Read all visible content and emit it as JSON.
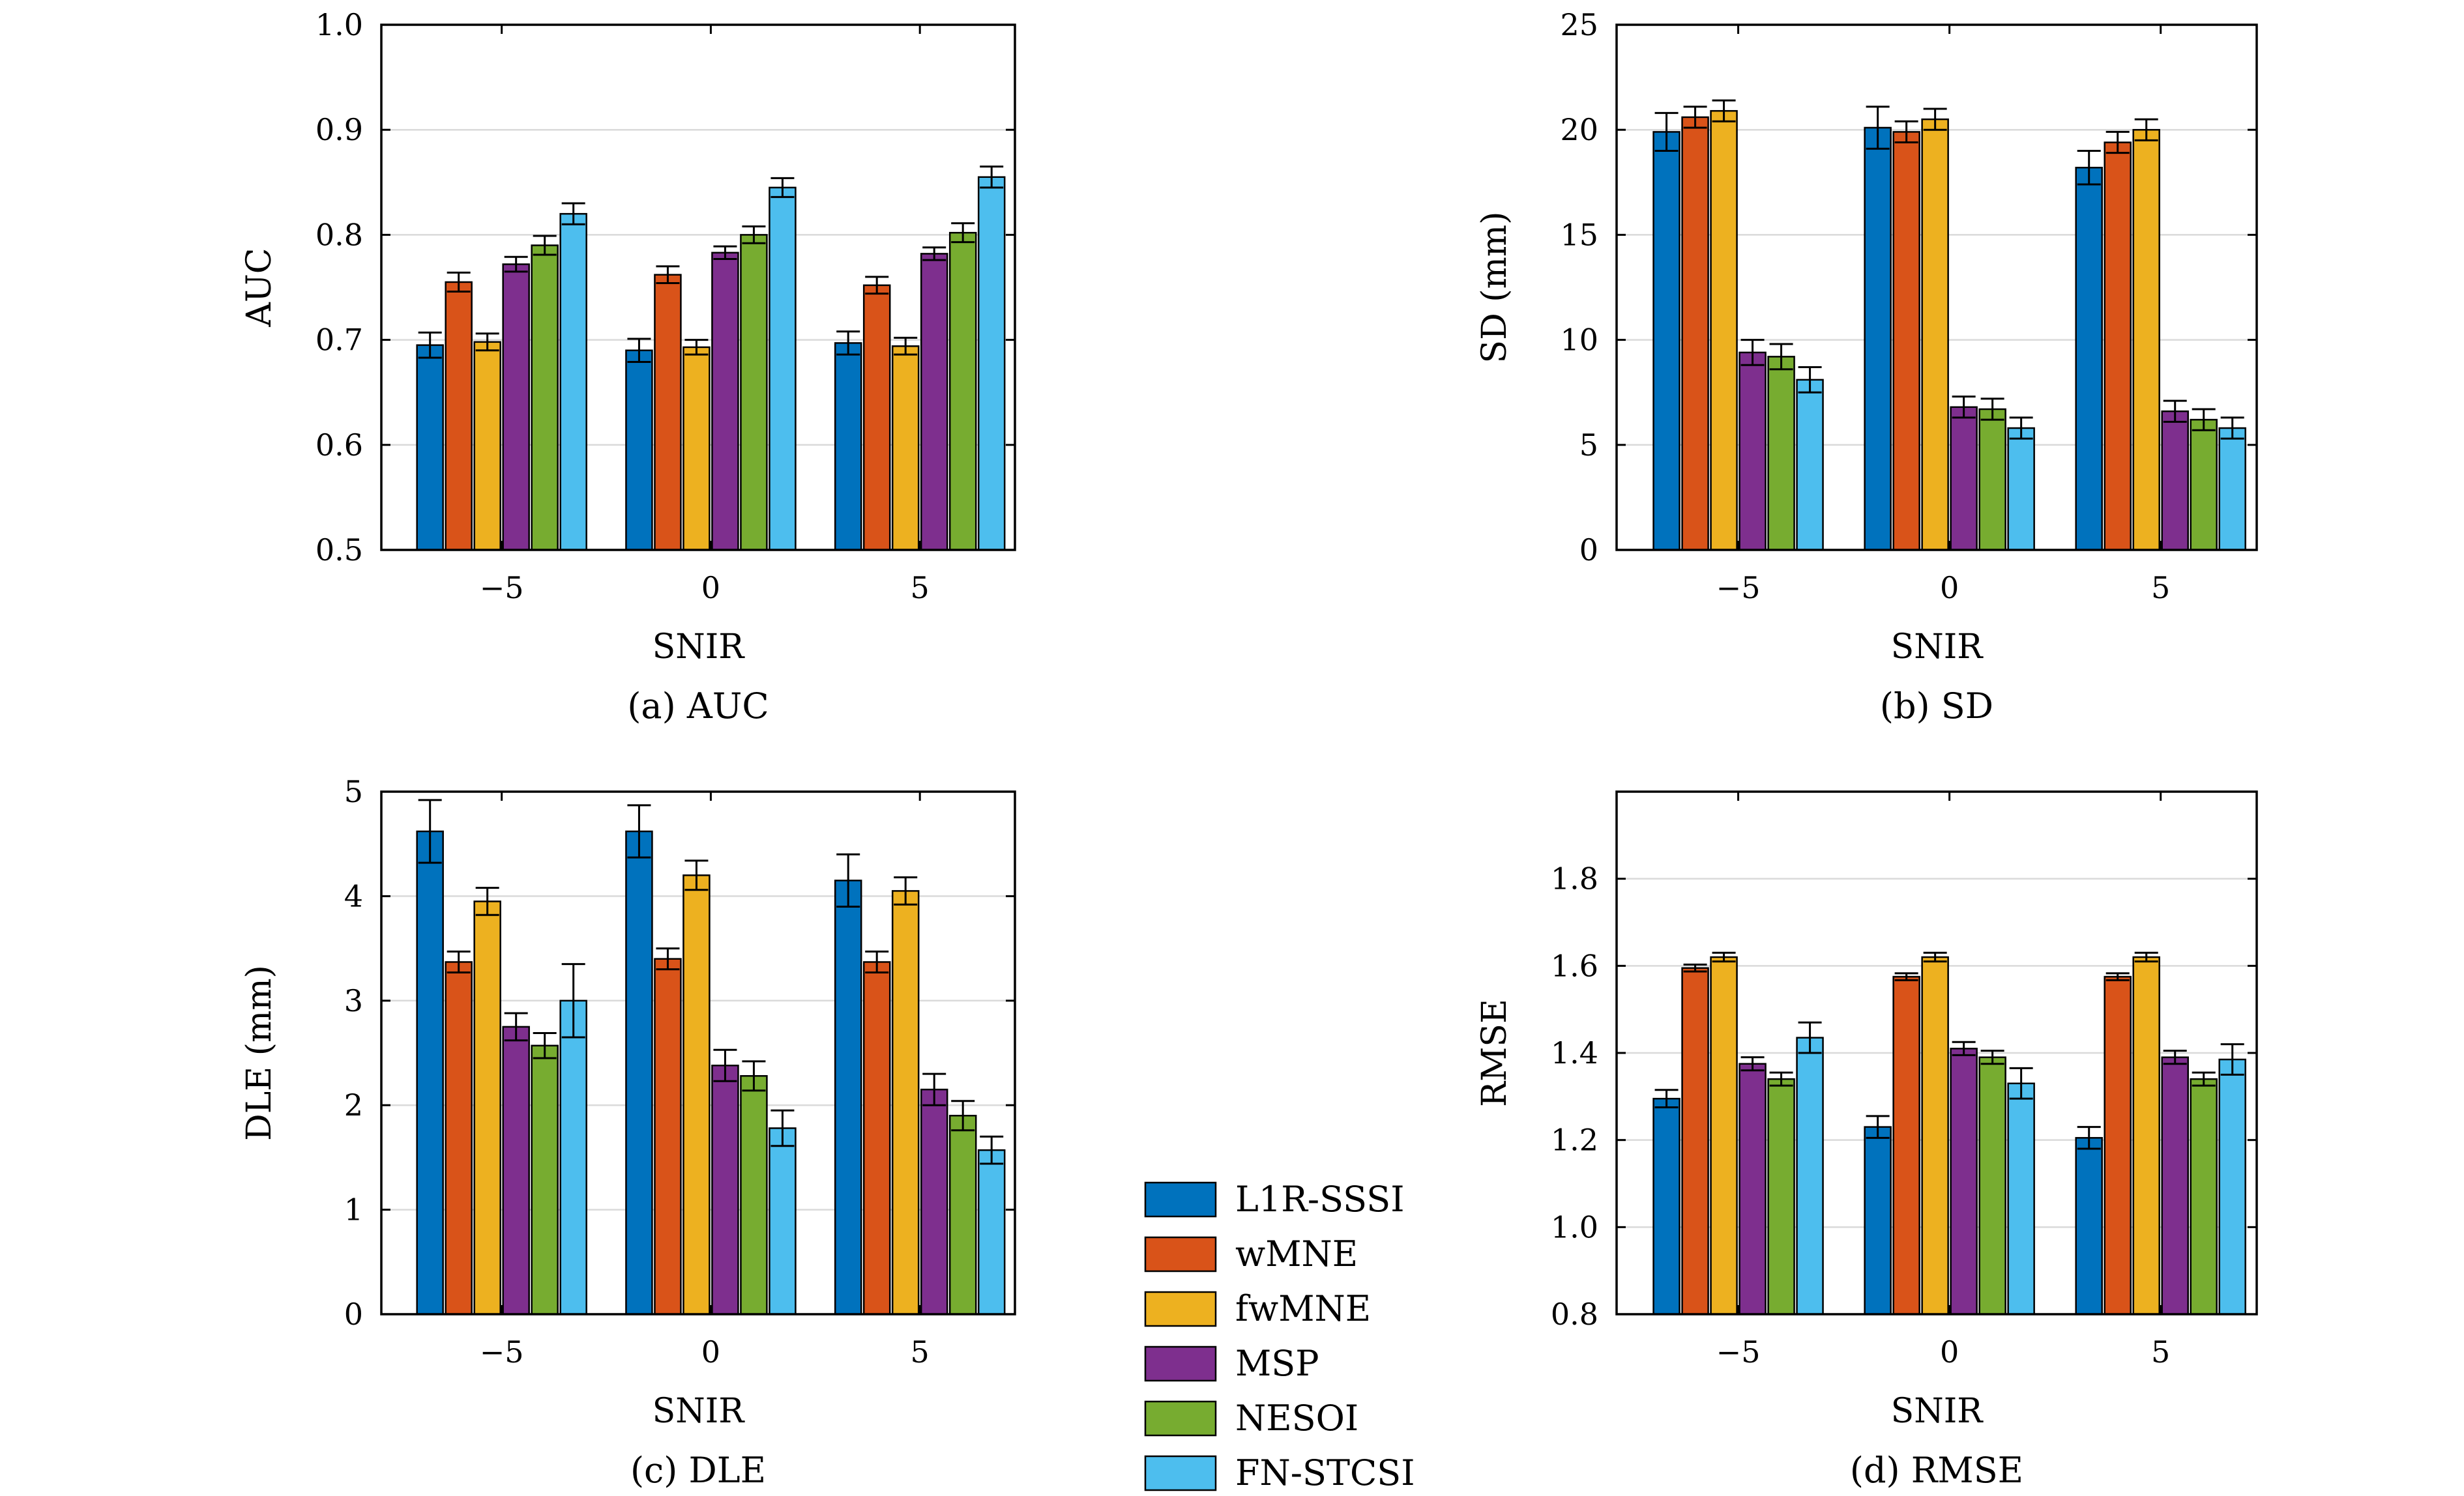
{
  "colors": {
    "L1R-SSSI": "#0072BD",
    "wMNE": "#D95319",
    "fwMNE": "#EDB120",
    "MSP": "#7E2F8E",
    "NESOI": "#77AC30",
    "FN-STCSI": "#4DBEEE"
  },
  "legend": {
    "entries": [
      "L1R-SSSI",
      "wMNE",
      "fwMNE",
      "MSP",
      "NESOI",
      "FN-STCSI"
    ]
  },
  "chart_data": [
    {
      "type": "bar",
      "caption": "(a) AUC",
      "xlabel": "SNIR",
      "ylabel": "AUC",
      "categories": [
        "−5",
        "0",
        "5"
      ],
      "ylim": [
        0.5,
        1.0
      ],
      "yticks": [
        "0.5",
        "0.6",
        "0.7",
        "0.8",
        "0.9",
        "1.0"
      ],
      "ytick_values": [
        0.5,
        0.6,
        0.7,
        0.8,
        0.9,
        1.0
      ],
      "grid": true,
      "series": [
        {
          "name": "L1R-SSSI",
          "values": [
            0.695,
            0.69,
            0.697
          ],
          "errors": [
            0.012,
            0.011,
            0.011
          ]
        },
        {
          "name": "wMNE",
          "values": [
            0.755,
            0.762,
            0.752
          ],
          "errors": [
            0.009,
            0.008,
            0.008
          ]
        },
        {
          "name": "fwMNE",
          "values": [
            0.698,
            0.693,
            0.694
          ],
          "errors": [
            0.008,
            0.007,
            0.008
          ]
        },
        {
          "name": "MSP",
          "values": [
            0.772,
            0.783,
            0.782
          ],
          "errors": [
            0.007,
            0.006,
            0.006
          ]
        },
        {
          "name": "NESOI",
          "values": [
            0.79,
            0.8,
            0.802
          ],
          "errors": [
            0.009,
            0.008,
            0.009
          ]
        },
        {
          "name": "FN-STCSI",
          "values": [
            0.82,
            0.845,
            0.855
          ],
          "errors": [
            0.01,
            0.009,
            0.01
          ]
        }
      ]
    },
    {
      "type": "bar",
      "caption": "(b) SD",
      "xlabel": "SNIR",
      "ylabel": "SD (mm)",
      "categories": [
        "−5",
        "0",
        "5"
      ],
      "ylim": [
        0,
        25
      ],
      "yticks": [
        "0",
        "5",
        "10",
        "15",
        "20",
        "25"
      ],
      "ytick_values": [
        0,
        5,
        10,
        15,
        20,
        25
      ],
      "grid": true,
      "series": [
        {
          "name": "L1R-SSSI",
          "values": [
            19.9,
            20.1,
            18.2
          ],
          "errors": [
            0.9,
            1.0,
            0.8
          ]
        },
        {
          "name": "wMNE",
          "values": [
            20.6,
            19.9,
            19.4
          ],
          "errors": [
            0.5,
            0.5,
            0.5
          ]
        },
        {
          "name": "fwMNE",
          "values": [
            20.9,
            20.5,
            20.0
          ],
          "errors": [
            0.5,
            0.5,
            0.5
          ]
        },
        {
          "name": "MSP",
          "values": [
            9.4,
            6.8,
            6.6
          ],
          "errors": [
            0.6,
            0.5,
            0.5
          ]
        },
        {
          "name": "NESOI",
          "values": [
            9.2,
            6.7,
            6.2
          ],
          "errors": [
            0.6,
            0.5,
            0.5
          ]
        },
        {
          "name": "FN-STCSI",
          "values": [
            8.1,
            5.8,
            5.8
          ],
          "errors": [
            0.6,
            0.5,
            0.5
          ]
        }
      ]
    },
    {
      "type": "bar",
      "caption": "(c) DLE",
      "xlabel": "SNIR",
      "ylabel": "DLE (mm)",
      "categories": [
        "−5",
        "0",
        "5"
      ],
      "ylim": [
        0,
        5
      ],
      "yticks": [
        "0",
        "1",
        "2",
        "3",
        "4",
        "5"
      ],
      "ytick_values": [
        0,
        1,
        2,
        3,
        4,
        5
      ],
      "grid": true,
      "series": [
        {
          "name": "L1R-SSSI",
          "values": [
            4.62,
            4.62,
            4.15
          ],
          "errors": [
            0.3,
            0.25,
            0.25
          ]
        },
        {
          "name": "wMNE",
          "values": [
            3.37,
            3.4,
            3.37
          ],
          "errors": [
            0.1,
            0.1,
            0.1
          ]
        },
        {
          "name": "fwMNE",
          "values": [
            3.95,
            4.2,
            4.05
          ],
          "errors": [
            0.13,
            0.14,
            0.13
          ]
        },
        {
          "name": "MSP",
          "values": [
            2.75,
            2.38,
            2.15
          ],
          "errors": [
            0.13,
            0.15,
            0.15
          ]
        },
        {
          "name": "NESOI",
          "values": [
            2.57,
            2.28,
            1.9
          ],
          "errors": [
            0.12,
            0.14,
            0.14
          ]
        },
        {
          "name": "FN-STCSI",
          "values": [
            3.0,
            1.78,
            1.57
          ],
          "errors": [
            0.35,
            0.17,
            0.13
          ]
        }
      ]
    },
    {
      "type": "bar",
      "caption": "(d) RMSE",
      "xlabel": "SNIR",
      "ylabel": "RMSE",
      "categories": [
        "−5",
        "0",
        "5"
      ],
      "ylim": [
        0.8,
        2.0
      ],
      "yticks": [
        "0.8",
        "1.0",
        "1.2",
        "1.4",
        "1.6",
        "1.8"
      ],
      "ytick_values": [
        0.8,
        1.0,
        1.2,
        1.4,
        1.6,
        1.8
      ],
      "grid": true,
      "series": [
        {
          "name": "L1R-SSSI",
          "values": [
            1.295,
            1.23,
            1.205
          ],
          "errors": [
            0.02,
            0.025,
            0.025
          ]
        },
        {
          "name": "wMNE",
          "values": [
            1.595,
            1.575,
            1.575
          ],
          "errors": [
            0.008,
            0.008,
            0.008
          ]
        },
        {
          "name": "fwMNE",
          "values": [
            1.62,
            1.62,
            1.62
          ],
          "errors": [
            0.01,
            0.01,
            0.01
          ]
        },
        {
          "name": "MSP",
          "values": [
            1.375,
            1.41,
            1.39
          ],
          "errors": [
            0.015,
            0.015,
            0.015
          ]
        },
        {
          "name": "NESOI",
          "values": [
            1.34,
            1.39,
            1.34
          ],
          "errors": [
            0.015,
            0.015,
            0.015
          ]
        },
        {
          "name": "FN-STCSI",
          "values": [
            1.435,
            1.33,
            1.385
          ],
          "errors": [
            0.035,
            0.035,
            0.035
          ]
        }
      ]
    }
  ]
}
